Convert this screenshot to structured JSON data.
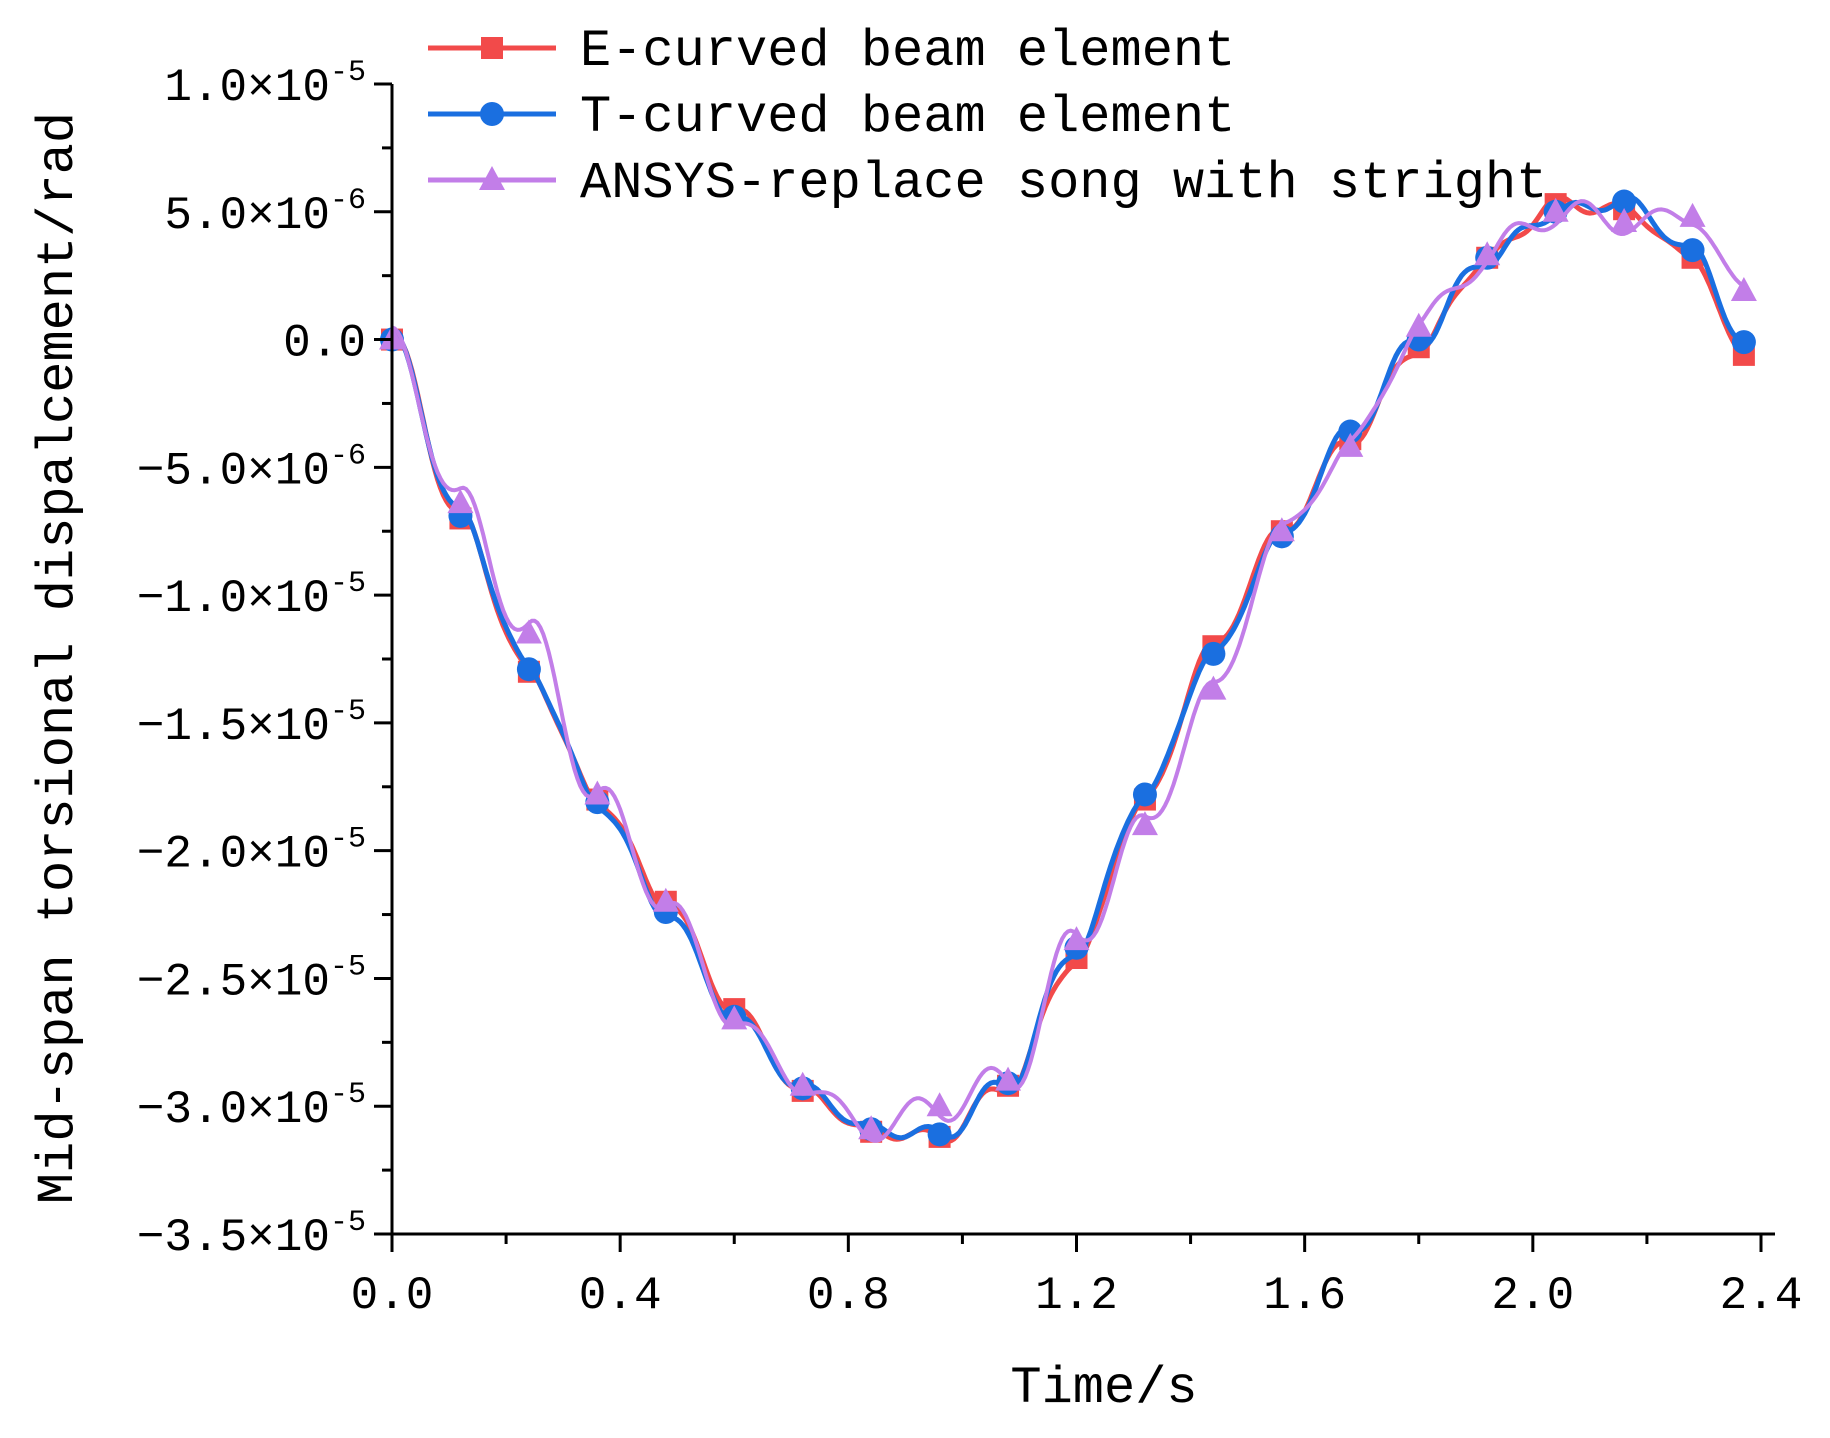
{
  "chart_data": {
    "type": "line",
    "xlabel": "Time/s",
    "ylabel": "Mid-span torsional dispalcement/rad",
    "xlim": [
      0.0,
      2.4
    ],
    "ylim": [
      -3.5e-05,
      1e-05
    ],
    "x_ticks": [
      "0.0",
      "0.4",
      "0.8",
      "1.2",
      "1.6",
      "2.0",
      "2.4"
    ],
    "x_tick_values": [
      0.0,
      0.4,
      0.8,
      1.2,
      1.6,
      2.0,
      2.4
    ],
    "y_ticks": [
      {
        "value": 1e-05,
        "mantissa": "1.0",
        "sign": "",
        "exponent": "-5"
      },
      {
        "value": 5e-06,
        "mantissa": "5.0",
        "sign": "",
        "exponent": "-6"
      },
      {
        "value": 0.0,
        "mantissa": "0.0",
        "sign": "",
        "exponent": ""
      },
      {
        "value": -5e-06,
        "mantissa": "5.0",
        "sign": "-",
        "exponent": "-6"
      },
      {
        "value": -1e-05,
        "mantissa": "1.0",
        "sign": "-",
        "exponent": "-5"
      },
      {
        "value": -1.5e-05,
        "mantissa": "1.5",
        "sign": "-",
        "exponent": "-5"
      },
      {
        "value": -2e-05,
        "mantissa": "2.0",
        "sign": "-",
        "exponent": "-5"
      },
      {
        "value": -2.5e-05,
        "mantissa": "2.5",
        "sign": "-",
        "exponent": "-5"
      },
      {
        "value": -3e-05,
        "mantissa": "3.0",
        "sign": "-",
        "exponent": "-5"
      },
      {
        "value": -3.5e-05,
        "mantissa": "3.5",
        "sign": "-",
        "exponent": "-5"
      }
    ],
    "times_symbol": "×10",
    "legend_position": "top-left",
    "x": [
      0.0,
      0.12,
      0.24,
      0.36,
      0.48,
      0.6,
      0.72,
      0.84,
      0.96,
      1.08,
      1.2,
      1.32,
      1.44,
      1.56,
      1.68,
      1.8,
      1.92,
      2.04,
      2.16,
      2.28,
      2.37
    ],
    "series": [
      {
        "name": "E-curved beam element",
        "color": "#f24a4a",
        "marker": "square",
        "values": [
          0.0,
          -7e-06,
          -1.3e-05,
          -1.8e-05,
          -2.2e-05,
          -2.62e-05,
          -2.94e-05,
          -3.1e-05,
          -3.12e-05,
          -2.92e-05,
          -2.42e-05,
          -1.8e-05,
          -1.2e-05,
          -7.5e-06,
          -3.9e-06,
          -3e-07,
          3.2e-06,
          5.3e-06,
          5.1e-06,
          3.2e-06,
          -6e-07
        ]
      },
      {
        "name": "T-curved beam element",
        "color": "#1a6fe0",
        "marker": "circle",
        "values": [
          0.0,
          -6.9e-06,
          -1.29e-05,
          -1.81e-05,
          -2.24e-05,
          -2.65e-05,
          -2.93e-05,
          -3.09e-05,
          -3.11e-05,
          -2.91e-05,
          -2.38e-05,
          -1.78e-05,
          -1.23e-05,
          -7.7e-06,
          -3.6e-06,
          0.0,
          3.2e-06,
          5e-06,
          5.4e-06,
          3.5e-06,
          -1e-07
        ]
      },
      {
        "name": "ANSYS-replace song with stright",
        "color": "#c27ee8",
        "marker": "triangle",
        "values": [
          0.0,
          -6.4e-06,
          -1.15e-05,
          -1.78e-05,
          -2.2e-05,
          -2.66e-05,
          -2.92e-05,
          -3.09e-05,
          -3e-05,
          -2.9e-05,
          -2.35e-05,
          -1.9e-05,
          -1.37e-05,
          -7.5e-06,
          -4.2e-06,
          5e-07,
          3.3e-06,
          5e-06,
          4.6e-06,
          4.8e-06,
          1.9e-06
        ]
      }
    ]
  }
}
